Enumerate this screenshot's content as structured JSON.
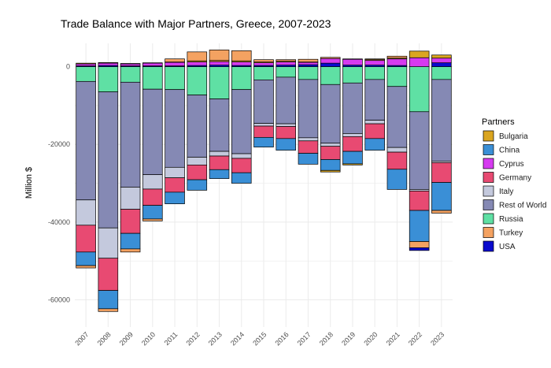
{
  "chart_data": {
    "type": "stacked-bar",
    "title": "Trade Balance with Major Partners, Greece, 2007-2023",
    "xlabel": "",
    "ylabel": "Million $",
    "ylim": [
      -67000,
      6000
    ],
    "yticks": [
      0,
      -20000,
      -40000,
      -60000
    ],
    "ytick_labels": [
      "0",
      "-20000",
      "-40000",
      "-60000"
    ],
    "legend_title": "Partners",
    "legend_position": "right",
    "categories": [
      "2007",
      "2008",
      "2009",
      "2010",
      "2011",
      "2012",
      "2013",
      "2014",
      "2015",
      "2016",
      "2017",
      "2018",
      "2019",
      "2020",
      "2021",
      "2022",
      "2023"
    ],
    "negative_stack_order": [
      "Russia",
      "Rest of World",
      "Italy",
      "Germany",
      "China",
      "Turkey",
      "Bulgaria",
      "Cyprus",
      "USA"
    ],
    "positive_stack_order": [
      "USA",
      "Cyprus",
      "Bulgaria",
      "Turkey"
    ],
    "series": [
      {
        "name": "Bulgaria",
        "color": "#DAA520",
        "values": [
          200,
          150,
          120,
          100,
          100,
          300,
          300,
          300,
          200,
          200,
          100,
          -400,
          -300,
          200,
          200,
          1700,
          800
        ]
      },
      {
        "name": "China",
        "color": "#3A8FD6",
        "values": [
          -3500,
          -4700,
          -4000,
          -3500,
          -3000,
          -2700,
          -2300,
          -2700,
          -2500,
          -3000,
          -2800,
          -2800,
          -3200,
          -3000,
          -5200,
          -8000,
          -7200
        ]
      },
      {
        "name": "Cyprus",
        "color": "#D63AF0",
        "values": [
          500,
          600,
          500,
          700,
          900,
          900,
          900,
          900,
          700,
          800,
          600,
          1200,
          1500,
          1200,
          1700,
          2300,
          1200
        ]
      },
      {
        "name": "Germany",
        "color": "#E84A72",
        "values": [
          -6900,
          -8300,
          -6200,
          -4200,
          -3700,
          -3800,
          -3500,
          -3700,
          -2900,
          -3100,
          -3200,
          -3400,
          -3800,
          -3800,
          -4400,
          -5000,
          -5100
        ]
      },
      {
        "name": "Italy",
        "color": "#C4C9DD",
        "values": [
          -6500,
          -7800,
          -5700,
          -3700,
          -2700,
          -2000,
          -1200,
          -1200,
          -700,
          -700,
          -800,
          -800,
          -800,
          -900,
          -1200,
          -400,
          -400
        ]
      },
      {
        "name": "Rest of World",
        "color": "#8589B4",
        "values": [
          -30500,
          -35000,
          -27000,
          -22000,
          -20000,
          -16000,
          -13500,
          -16500,
          -11200,
          -12000,
          -15000,
          -15100,
          -13000,
          -10500,
          -15700,
          -20000,
          -21000
        ]
      },
      {
        "name": "Russia",
        "color": "#5FE0A4",
        "values": [
          -3800,
          -6500,
          -4000,
          -5800,
          -5900,
          -7300,
          -8300,
          -5900,
          -3400,
          -2700,
          -3300,
          -4600,
          -4200,
          -3300,
          -5100,
          -11600,
          -3300
        ]
      },
      {
        "name": "Turkey",
        "color": "#F4A261",
        "values": [
          -600,
          -700,
          -800,
          -500,
          800,
          2300,
          2700,
          2600,
          600,
          400,
          700,
          300,
          100,
          200,
          500,
          -1600,
          -700
        ]
      },
      {
        "name": "USA",
        "color": "#0A0ACD",
        "values": [
          200,
          300,
          200,
          200,
          200,
          300,
          400,
          300,
          300,
          400,
          500,
          900,
          400,
          400,
          300,
          -700,
          1000
        ]
      }
    ]
  }
}
